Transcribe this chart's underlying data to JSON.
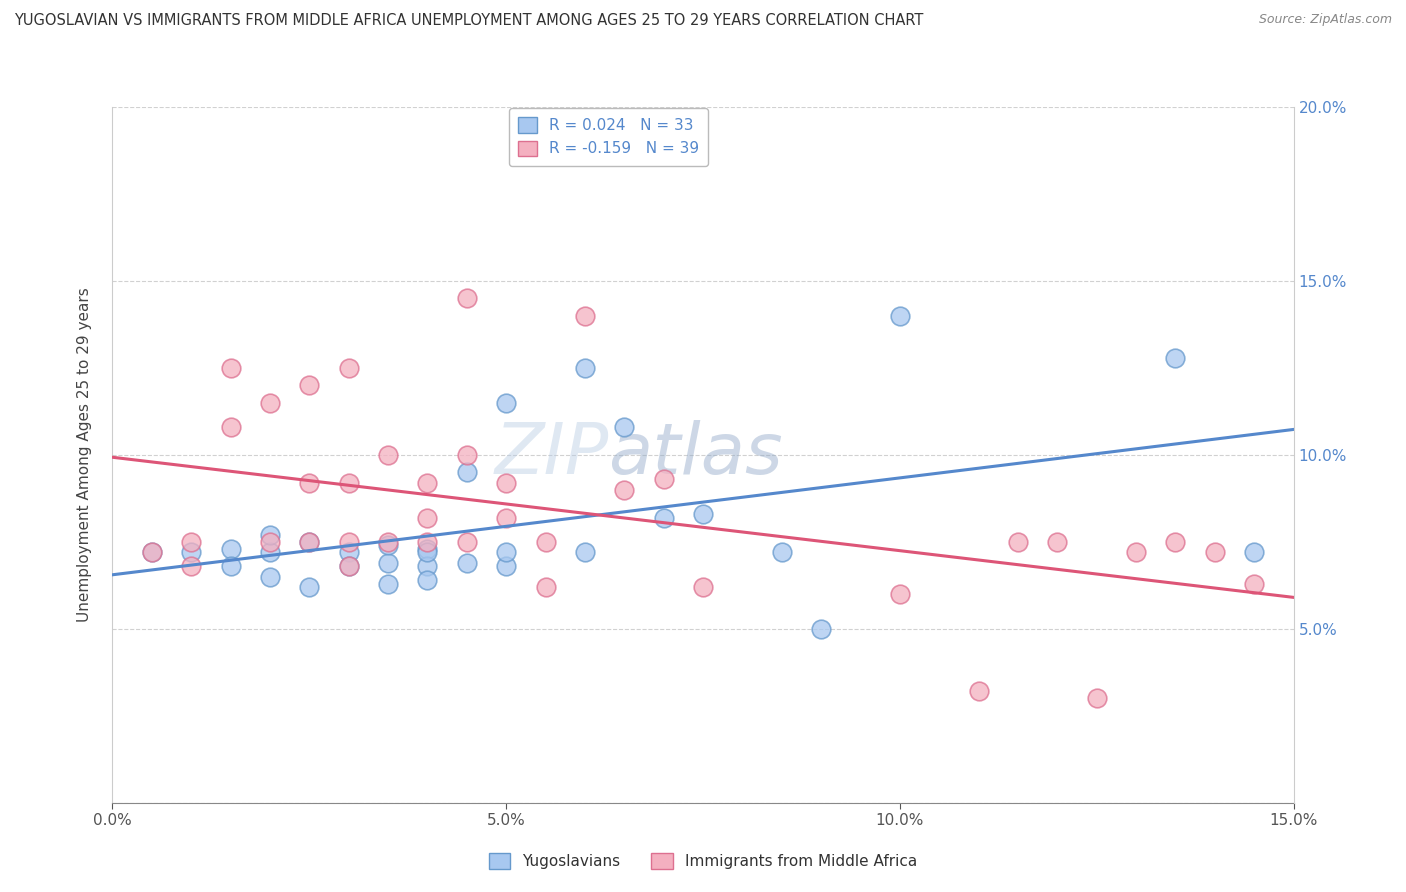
{
  "title": "YUGOSLAVIAN VS IMMIGRANTS FROM MIDDLE AFRICA UNEMPLOYMENT AMONG AGES 25 TO 29 YEARS CORRELATION CHART",
  "source": "Source: ZipAtlas.com",
  "ylabel": "Unemployment Among Ages 25 to 29 years",
  "xlim": [
    0.0,
    0.15
  ],
  "ylim": [
    0.0,
    0.2
  ],
  "xticks": [
    0.0,
    0.05,
    0.1,
    0.15
  ],
  "xtick_labels": [
    "0.0%",
    "5.0%",
    "10.0%",
    "15.0%"
  ],
  "yticks": [
    0.0,
    0.05,
    0.1,
    0.15,
    0.2
  ],
  "ytick_labels_right": [
    "",
    "5.0%",
    "10.0%",
    "15.0%",
    "20.0%"
  ],
  "legend_labels": [
    "Yugoslavians",
    "Immigrants from Middle Africa"
  ],
  "r_yugo": 0.024,
  "n_yugo": 33,
  "r_mid": -0.159,
  "n_mid": 39,
  "blue_fill": "#A8C8F0",
  "blue_edge": "#6699CC",
  "pink_fill": "#F4B0C0",
  "pink_edge": "#DD7090",
  "blue_line": "#5588CC",
  "pink_line": "#DD5577",
  "watermark_color": "#C8D8E8",
  "yugo_x": [
    0.005,
    0.01,
    0.015,
    0.015,
    0.02,
    0.02,
    0.02,
    0.025,
    0.025,
    0.03,
    0.03,
    0.035,
    0.035,
    0.035,
    0.04,
    0.04,
    0.04,
    0.04,
    0.045,
    0.045,
    0.05,
    0.05,
    0.05,
    0.06,
    0.06,
    0.065,
    0.07,
    0.075,
    0.085,
    0.09,
    0.1,
    0.135,
    0.145
  ],
  "yugo_y": [
    0.072,
    0.072,
    0.073,
    0.068,
    0.072,
    0.065,
    0.077,
    0.075,
    0.062,
    0.072,
    0.068,
    0.069,
    0.074,
    0.063,
    0.073,
    0.068,
    0.072,
    0.064,
    0.069,
    0.095,
    0.068,
    0.072,
    0.115,
    0.072,
    0.125,
    0.108,
    0.082,
    0.083,
    0.072,
    0.05,
    0.14,
    0.128,
    0.072
  ],
  "mid_x": [
    0.005,
    0.01,
    0.01,
    0.015,
    0.015,
    0.02,
    0.02,
    0.025,
    0.025,
    0.025,
    0.03,
    0.03,
    0.03,
    0.03,
    0.035,
    0.035,
    0.04,
    0.04,
    0.04,
    0.045,
    0.045,
    0.045,
    0.05,
    0.05,
    0.055,
    0.055,
    0.06,
    0.065,
    0.07,
    0.075,
    0.1,
    0.11,
    0.115,
    0.12,
    0.125,
    0.13,
    0.135,
    0.14,
    0.145
  ],
  "mid_y": [
    0.072,
    0.075,
    0.068,
    0.125,
    0.108,
    0.075,
    0.115,
    0.075,
    0.12,
    0.092,
    0.075,
    0.092,
    0.068,
    0.125,
    0.075,
    0.1,
    0.082,
    0.092,
    0.075,
    0.075,
    0.1,
    0.145,
    0.082,
    0.092,
    0.075,
    0.062,
    0.14,
    0.09,
    0.093,
    0.062,
    0.06,
    0.032,
    0.075,
    0.075,
    0.03,
    0.072,
    0.075,
    0.072,
    0.063
  ]
}
